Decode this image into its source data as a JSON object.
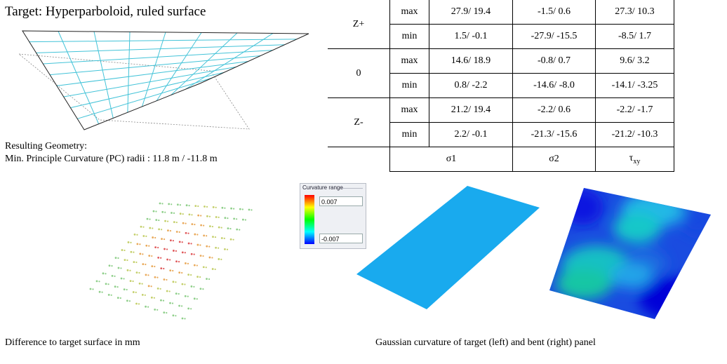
{
  "target_title": "Target: Hyperparboloid, ruled surface",
  "result_heading": "Resulting Geometry:",
  "result_detail": "Min. Principle Curvature (PC) radii : 11.8 m / -11.8 m",
  "table": {
    "groups": [
      {
        "label": "Z+",
        "rows": [
          {
            "type": "max",
            "s1": "27.9/ 19.4",
            "s2": "-1.5/ 0.6",
            "txy": "27.3/ 10.3"
          },
          {
            "type": "min",
            "s1": "1.5/ -0.1",
            "s2": "-27.9/ -15.5",
            "txy": "-8.5/ 1.7"
          }
        ]
      },
      {
        "label": "0",
        "rows": [
          {
            "type": "max",
            "s1": "14.6/ 18.9",
            "s2": "-0.8/ 0.7",
            "txy": "9.6/ 3.2"
          },
          {
            "type": "min",
            "s1": "0.8/ -2.2",
            "s2": "-14.6/ -8.0",
            "txy": "-14.1/ -3.25"
          }
        ]
      },
      {
        "label": "Z-",
        "rows": [
          {
            "type": "max",
            "s1": "21.2/ 19.4",
            "s2": "-2.2/ 0.6",
            "txy": "-2.2/ -1.7"
          },
          {
            "type": "min",
            "s1": "2.2/ -0.1",
            "s2": "-21.3/ -15.6",
            "txy": "-21.2/ -10.3"
          }
        ]
      }
    ],
    "footer": {
      "s1": "σ1",
      "s2": "σ2",
      "txy_base": "τ",
      "txy_sub": "xy"
    }
  },
  "legend": {
    "title": "Curvature range",
    "max": "0.007",
    "min": "-0.007",
    "colors": [
      "#ff0000",
      "#ffff00",
      "#00ff00",
      "#00ffff",
      "#0000ff"
    ]
  },
  "caption_left": "Difference to target surface in mm",
  "caption_right": "Gaussian curvature of target (left) and bent (right) panel"
}
